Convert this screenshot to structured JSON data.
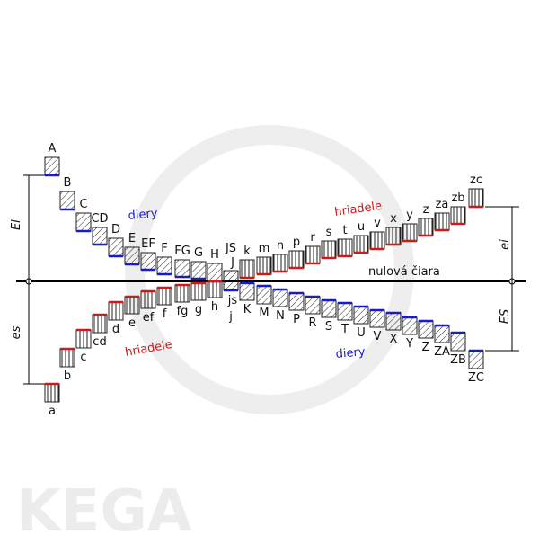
{
  "watermark": "KEGA",
  "annotations": {
    "holes_top": "diery",
    "shafts_top": "hriadele",
    "zero_line": "nulová čiara",
    "shafts_bottom": "hriadele",
    "holes_bottom": "diery"
  },
  "dimensions": {
    "EI": "EI",
    "es": "es",
    "ei": "ei",
    "ES": "ES"
  },
  "holes_above": [
    "A",
    "B",
    "C",
    "CD",
    "D",
    "E",
    "EF",
    "F",
    "FG",
    "G",
    "H",
    "JS",
    "J"
  ],
  "shafts_above": [
    "k",
    "m",
    "n",
    "p",
    "r",
    "s",
    "t",
    "u",
    "v",
    "x",
    "y",
    "z",
    "za",
    "zb",
    "zc"
  ],
  "shafts_below": [
    "a",
    "b",
    "c",
    "cd",
    "d",
    "e",
    "ef",
    "f",
    "fg",
    "g",
    "h",
    "js",
    "j"
  ],
  "holes_below": [
    "K",
    "M",
    "N",
    "P",
    "R",
    "S",
    "T",
    "U",
    "V",
    "X",
    "Y",
    "Z",
    "ZA",
    "ZB",
    "ZC"
  ]
}
